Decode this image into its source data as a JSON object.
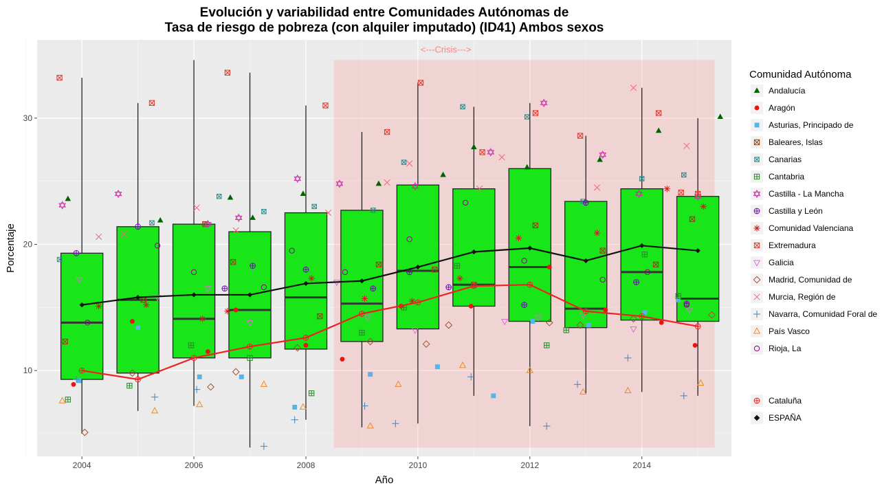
{
  "chart_data": {
    "type": "boxplot",
    "title": [
      "Evolución y variabilidad entre Comunidades Autónomas de",
      "Tasa de riesgo de pobreza (con alquiler imputado) (ID41) Ambos sexos"
    ],
    "xlabel": "Año",
    "ylabel": "Porcentaje",
    "xlim": [
      2003.2,
      2015.6
    ],
    "ylim": [
      3.2,
      36.2
    ],
    "x_ticks": [
      2004,
      2006,
      2008,
      2010,
      2012,
      2014
    ],
    "y_ticks": [
      10,
      20,
      30
    ],
    "grid": true,
    "legend_position": "right",
    "legend_title": "Comunidad Autónoma",
    "annotation": {
      "text": "<---Crisis--->",
      "x": 2010.5,
      "y": 35.2,
      "color": "#ff8080"
    },
    "shaded_region": {
      "x": [
        2008.5,
        2015.3
      ],
      "y": [
        3.9,
        34.6
      ],
      "color": "#ff9999",
      "opacity": 0.28
    },
    "box_fill": "#19e619",
    "boxes": [
      {
        "x": 2004,
        "min": 5.0,
        "q1": 9.3,
        "median": 13.8,
        "q3": 19.3,
        "max": 33.2
      },
      {
        "x": 2005,
        "min": 6.8,
        "q1": 9.8,
        "median": 15.6,
        "q3": 21.4,
        "max": 31.2
      },
      {
        "x": 2006,
        "min": 7.2,
        "q1": 11.0,
        "median": 14.1,
        "q3": 21.6,
        "max": 34.6
      },
      {
        "x": 2007,
        "min": 3.9,
        "q1": 11.0,
        "median": 14.8,
        "q3": 21.0,
        "max": 33.6
      },
      {
        "x": 2008,
        "min": 6.1,
        "q1": 11.7,
        "median": 15.8,
        "q3": 22.5,
        "max": 31.0
      },
      {
        "x": 2009,
        "min": 5.5,
        "q1": 12.3,
        "median": 15.3,
        "q3": 22.7,
        "max": 28.9
      },
      {
        "x": 2010,
        "min": 5.8,
        "q1": 13.3,
        "median": 17.9,
        "q3": 24.7,
        "max": 32.8
      },
      {
        "x": 2011,
        "min": 8.0,
        "q1": 15.1,
        "median": 16.8,
        "q3": 24.4,
        "max": 30.9
      },
      {
        "x": 2012,
        "min": 5.6,
        "q1": 13.9,
        "median": 18.2,
        "q3": 26.0,
        "max": 31.2
      },
      {
        "x": 2013,
        "min": 8.2,
        "q1": 13.4,
        "median": 14.9,
        "q3": 23.4,
        "max": 28.6
      },
      {
        "x": 2014,
        "min": 8.3,
        "q1": 14.0,
        "median": 17.8,
        "q3": 24.4,
        "max": 32.4
      },
      {
        "x": 2015,
        "min": 8.0,
        "q1": 13.9,
        "median": 15.7,
        "q3": 23.8,
        "max": 30.0
      }
    ],
    "series": [
      {
        "name": "Andalucía",
        "shape": "triangle-filled",
        "color": "#006400",
        "x": [
          2003.75,
          2005.4,
          2006.65,
          2007.05,
          2007.95,
          2009.3,
          2010.45,
          2011.0,
          2011.95,
          2013.25,
          2014.3,
          2015.4
        ],
        "y": [
          23.6,
          21.9,
          23.7,
          22.1,
          24.0,
          24.8,
          25.5,
          27.7,
          26.1,
          26.7,
          29.0,
          30.1
        ]
      },
      {
        "name": "Aragón",
        "shape": "circle-filled",
        "color": "#ee1111",
        "x": [
          2003.85,
          2004.9,
          2006.25,
          2006.75,
          2008.0,
          2008.65,
          2009.7,
          2010.95,
          2012.35,
          2013.35,
          2014.35,
          2014.95
        ],
        "y": [
          8.9,
          13.9,
          11.5,
          14.8,
          12.0,
          10.9,
          15.1,
          15.1,
          18.2,
          14.8,
          13.8,
          12.0
        ]
      },
      {
        "name": "Asturias, Principado de",
        "shape": "square-filled",
        "color": "#56b4e9",
        "x": [
          2003.95,
          2005.0,
          2006.1,
          2006.85,
          2007.8,
          2009.15,
          2010.35,
          2011.35,
          2012.05,
          2013.05,
          2014.05,
          2014.65
        ],
        "y": [
          9.2,
          13.4,
          9.5,
          9.5,
          7.1,
          9.7,
          10.3,
          8.0,
          13.9,
          13.6,
          14.6,
          15.6
        ]
      },
      {
        "name": "Baleares, Islas",
        "shape": "square-open-x",
        "color": "#8b4513",
        "x": [
          2003.7,
          2005.1,
          2006.2,
          2006.7,
          2008.25,
          2009.3,
          2010.3,
          2011.0,
          2012.1,
          2013.3,
          2014.25,
          2014.9
        ],
        "y": [
          12.3,
          15.6,
          21.6,
          18.6,
          14.3,
          18.4,
          18.0,
          16.8,
          21.5,
          19.5,
          18.4,
          22.0
        ]
      },
      {
        "name": "Canarias",
        "shape": "square-x",
        "color": "#2e8b8b",
        "x": [
          2003.6,
          2005.25,
          2006.45,
          2007.25,
          2008.15,
          2009.2,
          2009.75,
          2010.8,
          2011.95,
          2012.95,
          2014.0,
          2014.75
        ],
        "y": [
          18.8,
          21.7,
          23.8,
          22.6,
          23.0,
          22.7,
          26.5,
          30.9,
          30.1,
          23.4,
          25.2,
          25.5
        ]
      },
      {
        "name": "Cantabria",
        "shape": "square-plus",
        "color": "#228b22",
        "x": [
          2003.75,
          2004.85,
          2005.95,
          2007.0,
          2008.1,
          2009.0,
          2009.75,
          2010.7,
          2012.3,
          2012.65,
          2014.05,
          2014.65
        ],
        "y": [
          7.7,
          8.8,
          12.0,
          11.0,
          8.2,
          13.0,
          15.0,
          18.3,
          12.0,
          13.2,
          19.2,
          15.9
        ]
      },
      {
        "name": "Castilla - La Mancha",
        "shape": "star-of-david",
        "color": "#cc33aa",
        "x": [
          2003.65,
          2004.65,
          2006.25,
          2006.8,
          2007.85,
          2008.6,
          2009.95,
          2011.3,
          2012.25,
          2013.3,
          2013.95,
          2015.0
        ],
        "y": [
          23.1,
          24.0,
          21.6,
          22.1,
          25.2,
          24.8,
          24.6,
          27.3,
          31.2,
          27.1,
          24.0,
          23.8
        ]
      },
      {
        "name": "Castilla y León",
        "shape": "circle-plus",
        "color": "#6a0dad",
        "x": [
          2003.9,
          2005.0,
          2006.55,
          2007.05,
          2008.0,
          2009.2,
          2009.85,
          2010.55,
          2011.9,
          2013.0,
          2013.9,
          2014.8
        ],
        "y": [
          19.3,
          21.4,
          16.5,
          18.3,
          18.0,
          16.5,
          17.8,
          16.6,
          15.2,
          23.3,
          17.0,
          15.3
        ]
      },
      {
        "name": "Comunidad Valenciana",
        "shape": "asterisk",
        "color": "#c62020",
        "x": [
          2004.3,
          2005.15,
          2006.15,
          2006.6,
          2008.1,
          2009.05,
          2009.9,
          2010.75,
          2011.8,
          2013.2,
          2014.45,
          2015.1
        ],
        "y": [
          15.1,
          15.2,
          14.1,
          14.7,
          17.3,
          15.7,
          15.5,
          17.3,
          20.5,
          20.9,
          24.4,
          23.0
        ]
      },
      {
        "name": "Extremadura",
        "shape": "square-x-box",
        "color": "#e0392b",
        "x": [
          2003.6,
          2005.25,
          2006.6,
          2008.35,
          2009.45,
          2010.05,
          2011.15,
          2012.1,
          2012.9,
          2014.3,
          2014.7,
          2015.0
        ],
        "y": [
          33.2,
          31.2,
          33.6,
          31.0,
          28.9,
          32.8,
          27.3,
          30.4,
          28.6,
          30.4,
          24.1,
          24.0
        ]
      },
      {
        "name": "Galicia",
        "shape": "triangle-down",
        "color": "#da70d6",
        "x": [
          2003.95,
          2005.35,
          2006.25,
          2007.0,
          2008.55,
          2009.1,
          2009.95,
          2011.55,
          2012.15,
          2012.95,
          2013.85,
          2014.85
        ],
        "y": [
          17.2,
          15.8,
          16.5,
          13.8,
          17.0,
          14.2,
          13.2,
          13.9,
          14.2,
          14.4,
          13.3,
          14.8
        ]
      },
      {
        "name": "Madrid, Comunidad de",
        "shape": "diamond-open",
        "color": "#a0522d",
        "x": [
          2004.05,
          2004.9,
          2006.3,
          2006.75,
          2007.85,
          2009.15,
          2010.15,
          2010.55,
          2012.35,
          2012.9,
          2013.85,
          2015.25
        ],
        "y": [
          5.1,
          9.8,
          8.7,
          9.9,
          11.8,
          12.3,
          12.1,
          13.6,
          13.8,
          13.6,
          14.1,
          14.4
        ]
      },
      {
        "name": "Murcia, Región de",
        "shape": "x",
        "color": "#ee6677",
        "x": [
          2004.3,
          2004.75,
          2006.05,
          2006.75,
          2008.4,
          2009.45,
          2009.85,
          2011.1,
          2011.5,
          2013.2,
          2013.85,
          2014.8
        ],
        "y": [
          20.6,
          20.8,
          22.9,
          21.1,
          22.5,
          24.9,
          26.4,
          24.4,
          26.9,
          24.5,
          32.4,
          27.8
        ]
      },
      {
        "name": "Navarra, Comunidad Foral de",
        "shape": "plus",
        "color": "#4682b4",
        "x": [
          2003.9,
          2005.3,
          2006.05,
          2007.25,
          2007.8,
          2009.05,
          2009.6,
          2010.95,
          2012.3,
          2012.85,
          2013.75,
          2014.75
        ],
        "y": [
          9.3,
          7.9,
          8.5,
          4.0,
          6.1,
          7.2,
          5.8,
          9.5,
          5.6,
          8.9,
          11.0,
          8.0
        ]
      },
      {
        "name": "País Vasco",
        "shape": "triangle-open",
        "color": "#ee8822",
        "x": [
          2003.65,
          2005.3,
          2006.1,
          2007.25,
          2007.95,
          2009.15,
          2009.65,
          2010.8,
          2012.0,
          2012.95,
          2013.75,
          2015.05
        ],
        "y": [
          7.6,
          6.8,
          7.3,
          8.9,
          7.1,
          5.6,
          8.9,
          10.4,
          10.0,
          8.3,
          8.4,
          9.0
        ]
      },
      {
        "name": "Rioja, La",
        "shape": "circle-open",
        "color": "#8b008b",
        "x": [
          2004.1,
          2005.35,
          2006.0,
          2007.25,
          2007.75,
          2008.7,
          2009.85,
          2010.85,
          2011.9,
          2013.3,
          2014.1,
          2014.8
        ],
        "y": [
          13.8,
          19.9,
          17.8,
          16.6,
          19.5,
          17.8,
          20.4,
          23.3,
          18.7,
          17.2,
          17.8,
          15.2
        ]
      }
    ],
    "line_series": [
      {
        "name": "Cataluña",
        "shape": "circle-plus",
        "color": "#ee2222",
        "x": [
          2004,
          2005,
          2006,
          2007,
          2008,
          2009,
          2010,
          2011,
          2012,
          2013,
          2014,
          2015
        ],
        "y": [
          10.0,
          9.3,
          11.0,
          11.9,
          12.6,
          14.5,
          15.4,
          16.7,
          16.8,
          14.7,
          14.3,
          13.5
        ]
      },
      {
        "name": "ESPAÑA",
        "shape": "diamond-filled",
        "color": "#111111",
        "x": [
          2004,
          2005,
          2006,
          2007,
          2008,
          2009,
          2010,
          2011,
          2012,
          2013,
          2014,
          2015
        ],
        "y": [
          15.2,
          15.8,
          16.0,
          16.0,
          16.9,
          17.1,
          18.2,
          19.4,
          19.7,
          18.7,
          19.9,
          19.5
        ]
      }
    ]
  }
}
